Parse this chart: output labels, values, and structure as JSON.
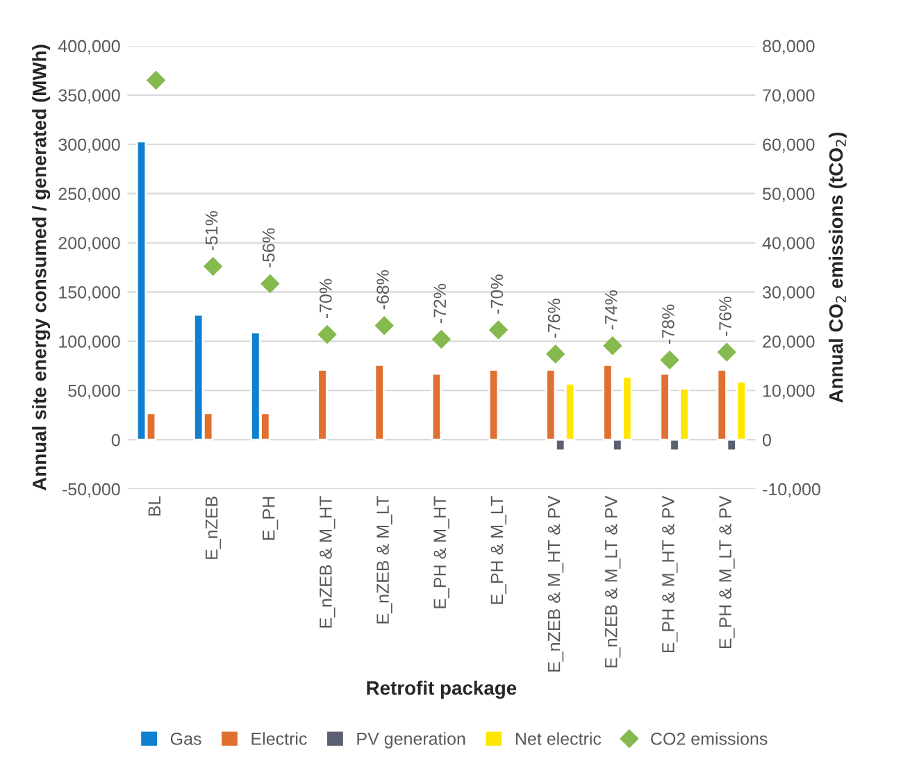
{
  "chart_data": {
    "type": "bar",
    "xlabel": "Retrofit package",
    "ylabel": "Annual site energy consumed / generated (MWh)",
    "y2label": "Annual CO$_{2}$ emissions (tCO$_{2}$)",
    "categories": [
      "BL",
      "E_nZEB",
      "E_PH",
      "E_nZEB & M_HT",
      "E_nZEB & M_LT",
      "E_PH & M_HT",
      "E_PH & M_LT",
      "E_nZEB & M_HT & PV",
      "E_nZEB & M_LT & PV",
      "E_PH & M_HT & PV",
      "E_PH & M_LT & PV"
    ],
    "series": [
      {
        "name": "Gas",
        "color": "#0f7fd0",
        "values": [
          303000,
          127000,
          109000,
          null,
          null,
          null,
          null,
          null,
          null,
          null,
          null
        ]
      },
      {
        "name": "Electric",
        "color": "#e07030",
        "values": [
          27000,
          27000,
          27000,
          71000,
          76000,
          67000,
          71000,
          71000,
          76000,
          67000,
          71000
        ]
      },
      {
        "name": "PV generation",
        "color": "#5a6070",
        "values": [
          null,
          null,
          null,
          null,
          null,
          null,
          null,
          -11000,
          -11000,
          -11000,
          -11000
        ]
      },
      {
        "name": "Net electric",
        "color": "#ffe600",
        "values": [
          null,
          null,
          null,
          null,
          null,
          null,
          null,
          57000,
          64000,
          52000,
          59000
        ]
      },
      {
        "name": "CO2 emissions",
        "type": "scatter",
        "axis": "y2",
        "marker": "diamond",
        "color": "#86b94e",
        "values": [
          73000,
          35200,
          31700,
          21400,
          23200,
          20400,
          22300,
          17400,
          19100,
          16200,
          17800
        ]
      }
    ],
    "annotations": [
      {
        "text": "-51%",
        "x": "E_nZEB",
        "y": 176000
      },
      {
        "text": "-56%",
        "x": "E_PH",
        "y": 158500
      },
      {
        "text": "-70%",
        "x": "E_nZEB & M_HT",
        "y": 107000
      },
      {
        "text": "-68%",
        "x": "E_nZEB & M_LT",
        "y": 116000
      },
      {
        "text": "-72%",
        "x": "E_PH & M_HT",
        "y": 102000
      },
      {
        "text": "-70%",
        "x": "E_PH & M_LT",
        "y": 111500
      },
      {
        "text": "-76%",
        "x": "E_nZEB & M_HT & PV",
        "y": 87000
      },
      {
        "text": "-74%",
        "x": "E_nZEB & M_LT & PV",
        "y": 95500
      },
      {
        "text": "-78%",
        "x": "E_PH & M_HT & PV",
        "y": 81000
      },
      {
        "text": "-76%",
        "x": "E_PH & M_LT & PV",
        "y": 89000
      }
    ],
    "ylim": [
      -50000,
      400000
    ],
    "yticks": [
      {
        "value": -50000,
        "label": "-50,000"
      },
      0,
      {
        "value": 50000,
        "label": "50,000"
      },
      {
        "value": 100000,
        "label": "100,000"
      },
      {
        "value": 150000,
        "label": "150,000"
      },
      {
        "value": 200000,
        "label": "200,000"
      },
      {
        "value": 250000,
        "label": "250,000"
      },
      {
        "value": 300000,
        "label": "300,000"
      },
      {
        "value": 350000,
        "label": "350,000"
      },
      {
        "value": 400000,
        "label": "400,000"
      }
    ],
    "y2lim": [
      -10000,
      80000
    ],
    "y2ticks": [
      {
        "value": -10000,
        "label": "-10,000"
      },
      0,
      {
        "value": 10000,
        "label": "10,000"
      },
      {
        "value": 20000,
        "label": "20,000"
      },
      {
        "value": 30000,
        "label": "30,000"
      },
      {
        "value": 40000,
        "label": "40,000"
      },
      {
        "value": 50000,
        "label": "50,000"
      },
      {
        "value": 60000,
        "label": "60,000"
      },
      {
        "value": 70000,
        "label": "70,000"
      },
      {
        "value": 80000,
        "label": "80,000"
      }
    ],
    "grid": "y",
    "legend": "bottom"
  }
}
